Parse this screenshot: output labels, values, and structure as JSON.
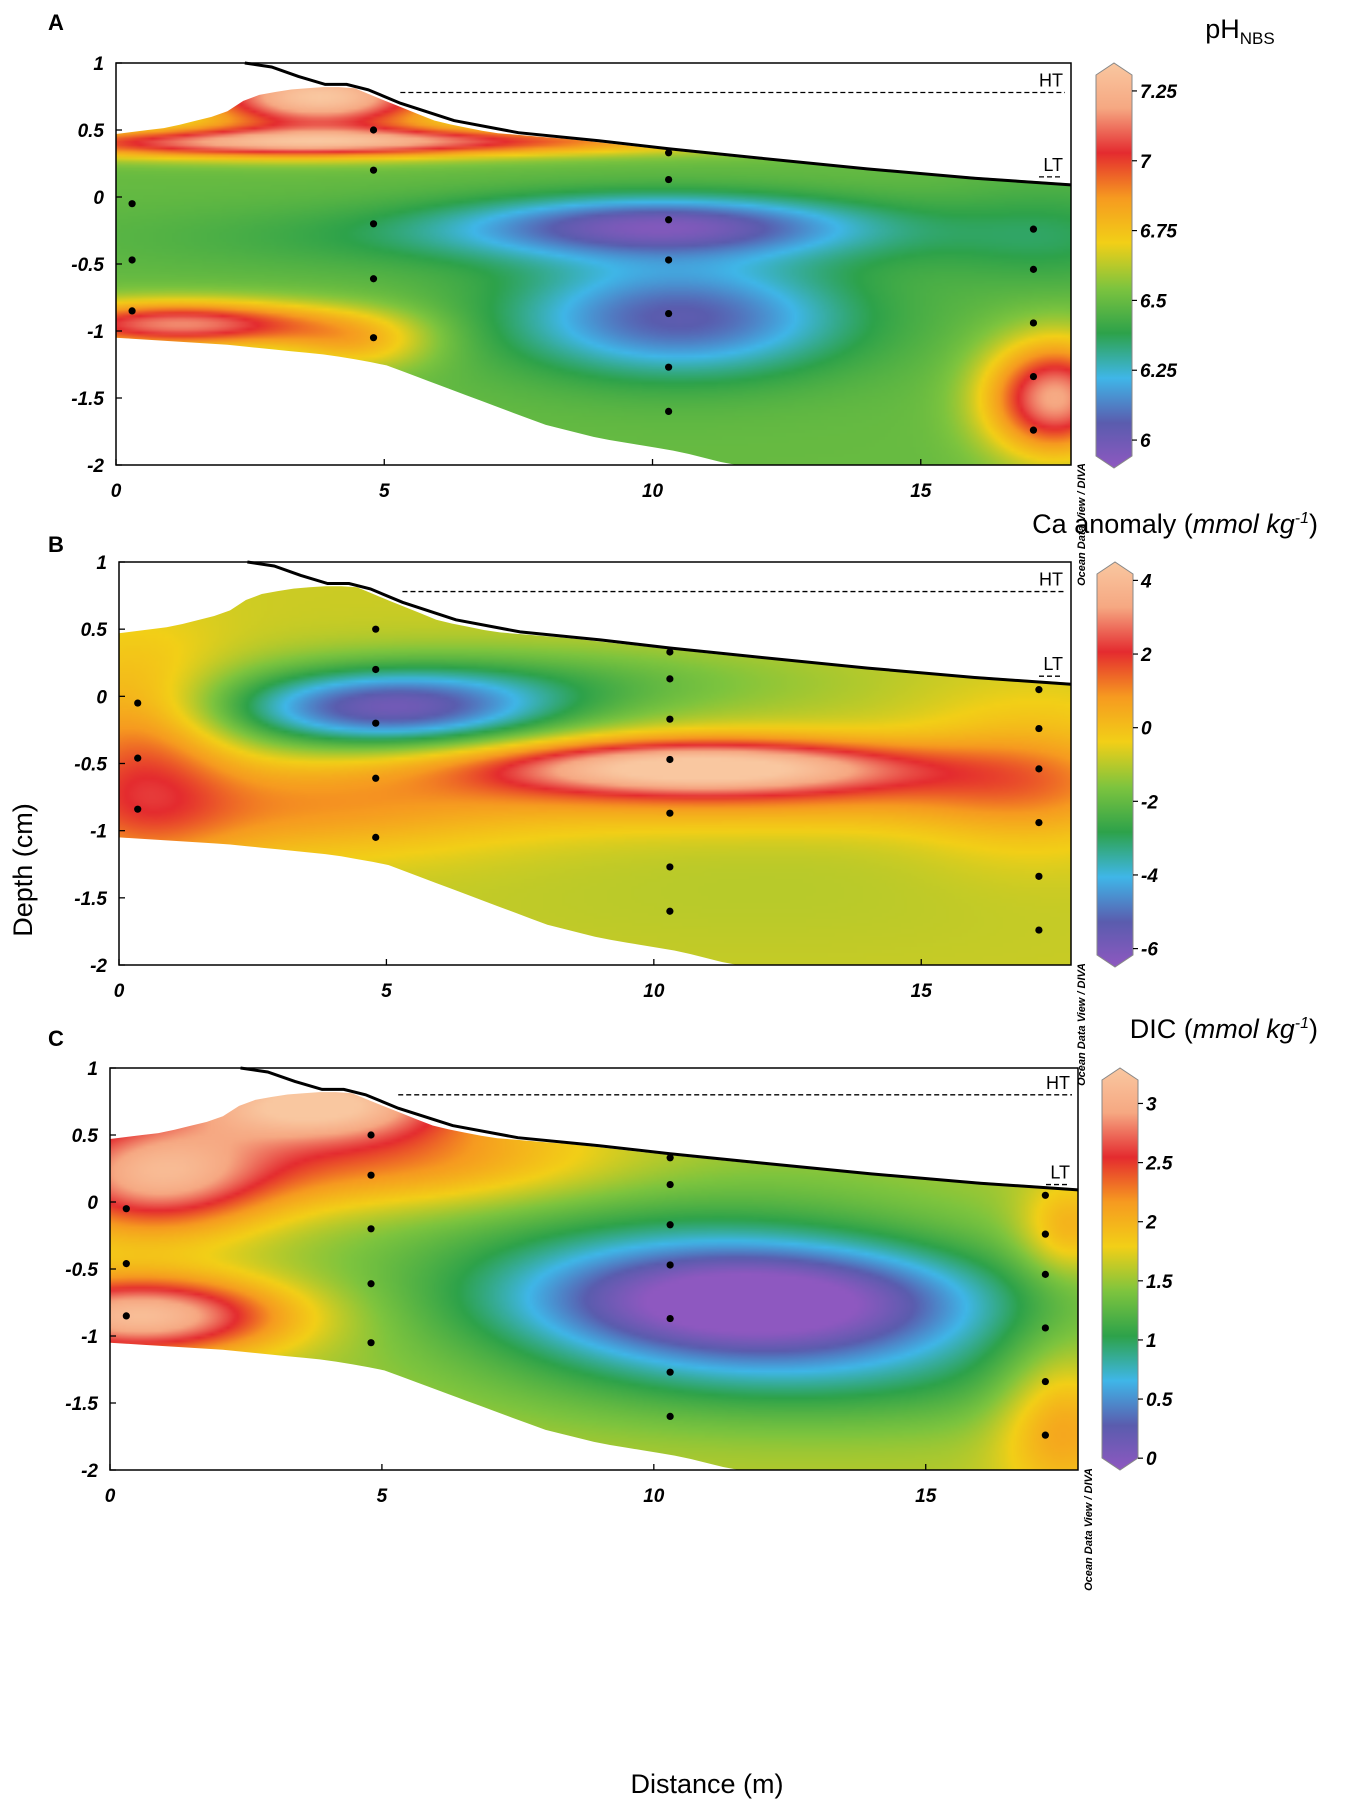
{
  "figure": {
    "x_axis_title": "Distance (m)",
    "y_axis_title": "Depth (cm)"
  },
  "colormap": [
    "#8e58c0",
    "#5a5cae",
    "#3fb6e8",
    "#2da24a",
    "#7dc43e",
    "#f2cf17",
    "#f69a20",
    "#e42b2f",
    "#f6a882",
    "#f9c7a0"
  ],
  "chart_data": [
    {
      "type": "heatmap",
      "panel_label": "A",
      "colorbar": {
        "title_main": "pH",
        "title_sub": "NBS",
        "title_italic": "",
        "title_sup": "",
        "title_close": "",
        "ticks": [
          "7.25",
          "7",
          "6.75",
          "6.5",
          "6.25",
          "6"
        ],
        "tick_values": [
          7.25,
          7,
          6.75,
          6.5,
          6.25,
          6
        ],
        "range": [
          5.9,
          7.35
        ]
      },
      "watermark": "Ocean Data View / DIVA",
      "xlim": [
        0,
        17.8
      ],
      "ylim": [
        -2,
        1
      ],
      "x_ticks": [
        "0",
        "5",
        "10",
        "15"
      ],
      "x_tick_values": [
        0,
        5,
        10,
        15
      ],
      "y_ticks": [
        "1",
        "0.5",
        "0",
        "-0.5",
        "-1",
        "-1.5",
        "-2"
      ],
      "y_tick_values": [
        1,
        0.5,
        0,
        -0.5,
        -1,
        -1.5,
        -2
      ],
      "markers": [
        {
          "label": "HT",
          "depth": 0.78
        },
        {
          "label": "LT",
          "depth": 0.15
        }
      ],
      "base_value": 6.5,
      "blobs": [
        {
          "x": 3.8,
          "y": 0.75,
          "sx": 1.6,
          "sy": 0.18,
          "v": 0.85
        },
        {
          "x": 2.5,
          "y": 0.4,
          "sx": 3.5,
          "sy": 0.08,
          "v": 0.55
        },
        {
          "x": 7.5,
          "y": 0.42,
          "sx": 4,
          "sy": 0.07,
          "v": 0.3
        },
        {
          "x": 10.2,
          "y": -0.2,
          "sx": 2.5,
          "sy": 0.15,
          "v": -0.4
        },
        {
          "x": 9,
          "y": -0.3,
          "sx": 5,
          "sy": 0.18,
          "v": -0.15
        },
        {
          "x": 10.5,
          "y": -0.9,
          "sx": 2.2,
          "sy": 0.3,
          "v": -0.45
        },
        {
          "x": 1.2,
          "y": -0.95,
          "sx": 2,
          "sy": 0.12,
          "v": 0.65
        },
        {
          "x": 17.5,
          "y": -1.5,
          "sx": 0.9,
          "sy": 0.3,
          "v": 0.7
        },
        {
          "x": 4.5,
          "y": -1.1,
          "sx": 1,
          "sy": 0.15,
          "v": 0.25
        },
        {
          "x": 17.5,
          "y": -0.3,
          "sx": 1.5,
          "sy": 0.3,
          "v": -0.1
        }
      ],
      "sample_points": [
        [
          0.3,
          -0.05
        ],
        [
          0.3,
          -0.47
        ],
        [
          0.3,
          -0.85
        ],
        [
          4.8,
          0.5
        ],
        [
          4.8,
          0.2
        ],
        [
          4.8,
          -0.2
        ],
        [
          4.8,
          -0.61
        ],
        [
          4.8,
          -1.05
        ],
        [
          10.3,
          0.33
        ],
        [
          10.3,
          0.13
        ],
        [
          10.3,
          -0.17
        ],
        [
          10.3,
          -0.47
        ],
        [
          10.3,
          -0.87
        ],
        [
          10.3,
          -1.27
        ],
        [
          10.3,
          -1.6
        ],
        [
          17.1,
          -0.24
        ],
        [
          17.1,
          -0.54
        ],
        [
          17.1,
          -0.94
        ],
        [
          17.1,
          -1.34
        ],
        [
          17.1,
          -1.74
        ]
      ]
    },
    {
      "type": "heatmap",
      "panel_label": "B",
      "colorbar": {
        "title_main": "Ca anomaly (",
        "title_sub": "",
        "title_italic": "mmol kg",
        "title_sup": "-1",
        "title_close": ")",
        "ticks": [
          "4",
          "2",
          "0",
          "-2",
          "-4",
          "-6"
        ],
        "tick_values": [
          4,
          2,
          0,
          -2,
          -4,
          -6
        ],
        "range": [
          -6.5,
          4.5
        ]
      },
      "watermark": "Ocean Data View / DIVA",
      "xlim": [
        0,
        17.8
      ],
      "ylim": [
        -2,
        1
      ],
      "x_ticks": [
        "0",
        "5",
        "10",
        "15"
      ],
      "x_tick_values": [
        0,
        5,
        10,
        15
      ],
      "y_ticks": [
        "1",
        "0.5",
        "0",
        "-0.5",
        "-1",
        "-1.5",
        "-2"
      ],
      "y_tick_values": [
        1,
        0.5,
        0,
        -0.5,
        -1,
        -1.5,
        -2
      ],
      "markers": [
        {
          "label": "HT",
          "depth": 0.78
        },
        {
          "label": "LT",
          "depth": 0.15
        }
      ],
      "base_value": -0.8,
      "blobs": [
        {
          "x": 5,
          "y": -0.1,
          "sx": 2.2,
          "sy": 0.2,
          "v": -4.5
        },
        {
          "x": 8,
          "y": 0.1,
          "sx": 3.5,
          "sy": 0.2,
          "v": -1.2
        },
        {
          "x": 10.8,
          "y": -0.52,
          "sx": 2.8,
          "sy": 0.14,
          "v": 5
        },
        {
          "x": 12,
          "y": -0.7,
          "sx": 5,
          "sy": 0.2,
          "v": 1.6
        },
        {
          "x": 0.4,
          "y": -0.5,
          "sx": 1.2,
          "sy": 0.55,
          "v": 2.2
        },
        {
          "x": 3,
          "y": -0.85,
          "sx": 3,
          "sy": 0.25,
          "v": 1.4
        },
        {
          "x": 17,
          "y": -0.6,
          "sx": 1.5,
          "sy": 0.4,
          "v": 1.2
        },
        {
          "x": 12,
          "y": -1.4,
          "sx": 5,
          "sy": 0.4,
          "v": -0.2
        }
      ],
      "sample_points": [
        [
          0.35,
          -0.05
        ],
        [
          0.35,
          -0.46
        ],
        [
          0.35,
          -0.84
        ],
        [
          4.8,
          0.5
        ],
        [
          4.8,
          0.2
        ],
        [
          4.8,
          -0.2
        ],
        [
          4.8,
          -0.61
        ],
        [
          4.8,
          -1.05
        ],
        [
          10.3,
          0.33
        ],
        [
          10.3,
          0.13
        ],
        [
          10.3,
          -0.17
        ],
        [
          10.3,
          -0.47
        ],
        [
          10.3,
          -0.87
        ],
        [
          10.3,
          -1.27
        ],
        [
          10.3,
          -1.6
        ],
        [
          17.2,
          0.05
        ],
        [
          17.2,
          -0.24
        ],
        [
          17.2,
          -0.54
        ],
        [
          17.2,
          -0.94
        ],
        [
          17.2,
          -1.34
        ],
        [
          17.2,
          -1.74
        ]
      ]
    },
    {
      "type": "heatmap",
      "panel_label": "C",
      "colorbar": {
        "title_main": "DIC (",
        "title_sub": "",
        "title_italic": "mmol kg",
        "title_sup": "-1",
        "title_close": ")",
        "ticks": [
          "3",
          "2.5",
          "2",
          "1.5",
          "1",
          "0.5",
          "0"
        ],
        "tick_values": [
          3,
          2.5,
          2,
          1.5,
          1,
          0.5,
          0
        ],
        "range": [
          -0.1,
          3.3
        ]
      },
      "watermark": "Ocean Data View / DIVA",
      "xlim": [
        0,
        17.8
      ],
      "ylim": [
        -2,
        1
      ],
      "x_ticks": [
        "0",
        "5",
        "10",
        "15"
      ],
      "x_tick_values": [
        0,
        5,
        10,
        15
      ],
      "y_ticks": [
        "1",
        "0.5",
        "0",
        "-0.5",
        "-1",
        "-1.5",
        "-2"
      ],
      "y_tick_values": [
        1,
        0.5,
        0,
        -0.5,
        -1,
        -1.5,
        -2
      ],
      "markers": [
        {
          "label": "HT",
          "depth": 0.8
        },
        {
          "label": "LT",
          "depth": 0.13
        }
      ],
      "base_value": 1.6,
      "blobs": [
        {
          "x": 3.8,
          "y": 0.75,
          "sx": 1.8,
          "sy": 0.2,
          "v": 1.7
        },
        {
          "x": 0.8,
          "y": 0.2,
          "sx": 1.5,
          "sy": 0.3,
          "v": 1.3
        },
        {
          "x": 0.6,
          "y": -0.85,
          "sx": 1.8,
          "sy": 0.2,
          "v": 1.6
        },
        {
          "x": 5,
          "y": 0.3,
          "sx": 3,
          "sy": 0.25,
          "v": 0.7
        },
        {
          "x": 12,
          "y": -0.75,
          "sx": 3,
          "sy": 0.3,
          "v": -1.6
        },
        {
          "x": 10,
          "y": -0.4,
          "sx": 4,
          "sy": 0.5,
          "v": -0.5
        },
        {
          "x": 13,
          "y": -1.3,
          "sx": 4,
          "sy": 0.3,
          "v": -0.5
        },
        {
          "x": 17.5,
          "y": -1.6,
          "sx": 0.8,
          "sy": 0.4,
          "v": 0.6
        },
        {
          "x": 17.6,
          "y": -0.2,
          "sx": 0.6,
          "sy": 0.25,
          "v": 0.5
        }
      ],
      "sample_points": [
        [
          0.3,
          -0.05
        ],
        [
          0.3,
          -0.46
        ],
        [
          0.3,
          -0.85
        ],
        [
          4.8,
          0.5
        ],
        [
          4.8,
          0.2
        ],
        [
          4.8,
          -0.2
        ],
        [
          4.8,
          -0.61
        ],
        [
          4.8,
          -1.05
        ],
        [
          10.3,
          0.33
        ],
        [
          10.3,
          0.13
        ],
        [
          10.3,
          -0.17
        ],
        [
          10.3,
          -0.47
        ],
        [
          10.3,
          -0.87
        ],
        [
          10.3,
          -1.27
        ],
        [
          10.3,
          -1.6
        ],
        [
          17.2,
          0.05
        ],
        [
          17.2,
          -0.24
        ],
        [
          17.2,
          -0.54
        ],
        [
          17.2,
          -0.94
        ],
        [
          17.2,
          -1.34
        ],
        [
          17.2,
          -1.74
        ]
      ]
    }
  ]
}
